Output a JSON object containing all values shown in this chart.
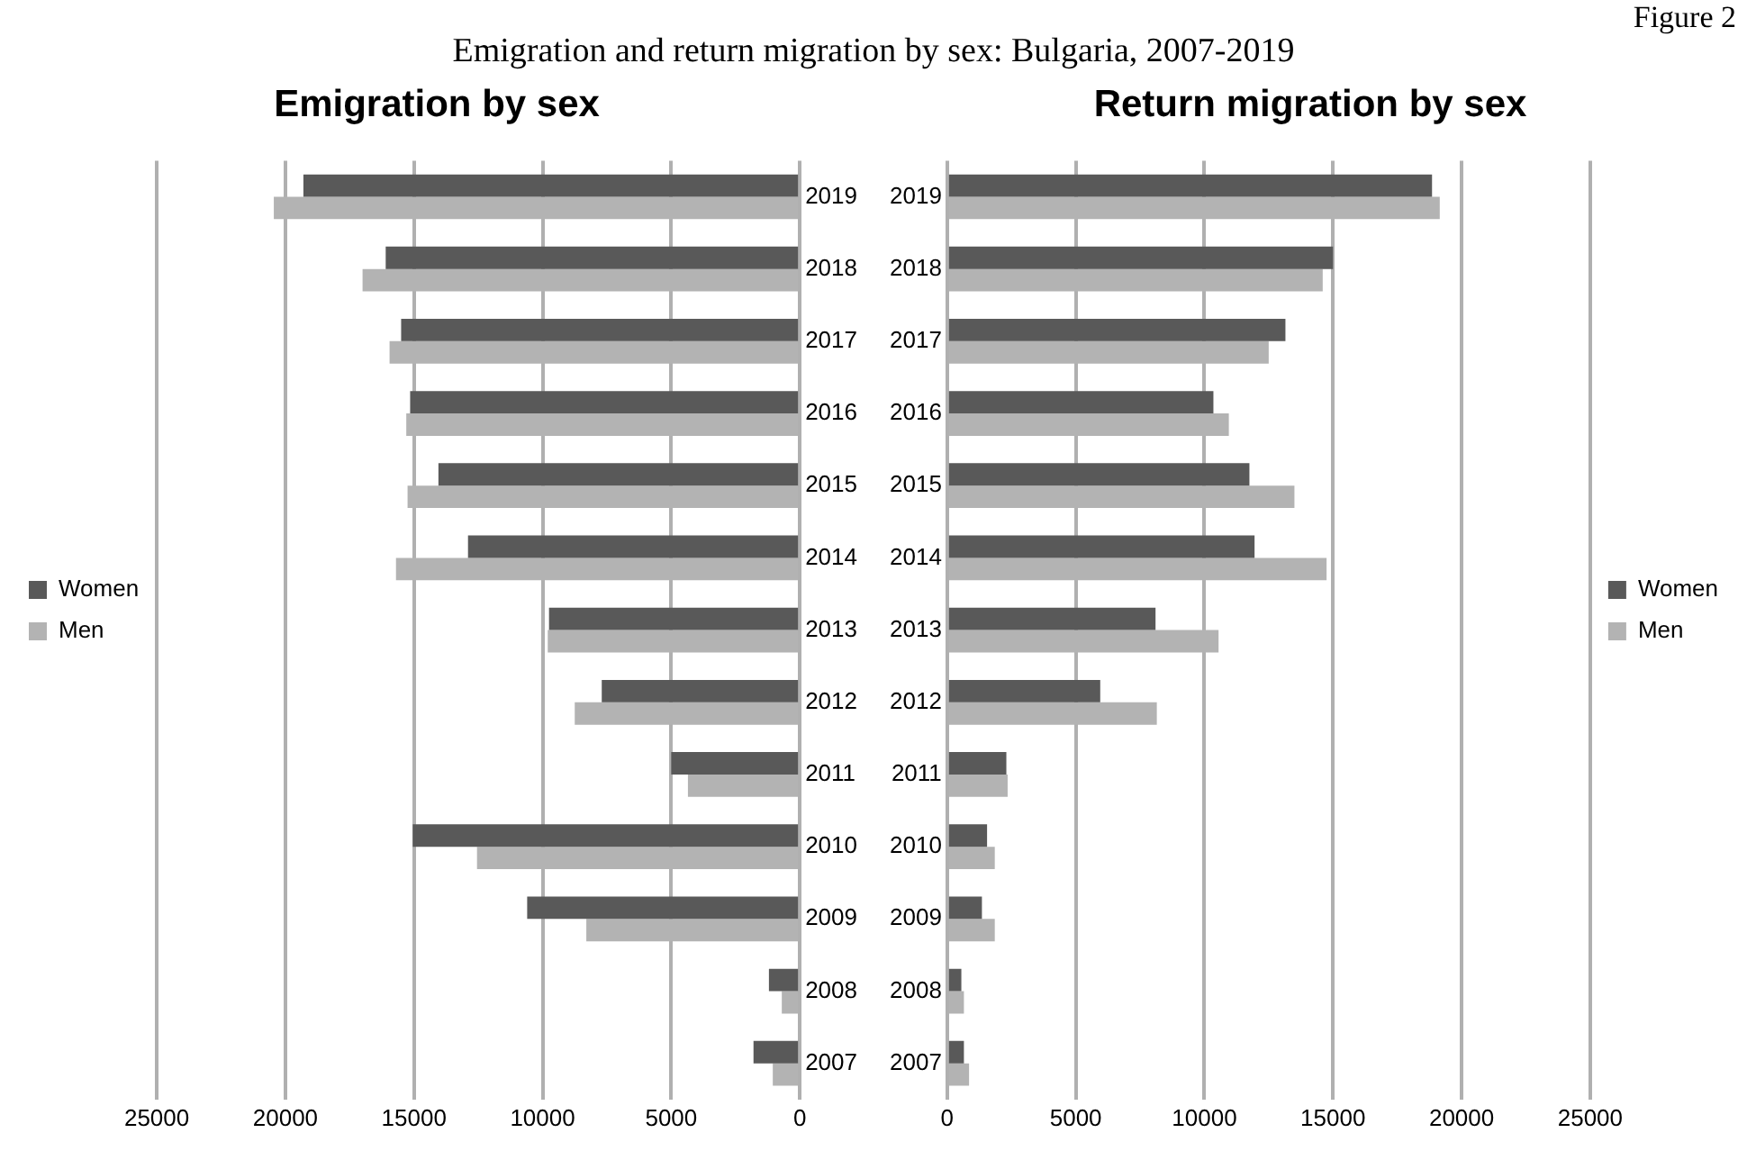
{
  "chart_data": [
    {
      "type": "bar",
      "orientation": "horizontal",
      "title": "Emigration by sex",
      "annotations": [
        "Figure 2",
        "Emigration and return migration by sex: Bulgaria, 2007-2019"
      ],
      "categories": [
        "2019",
        "2018",
        "2017",
        "2016",
        "2015",
        "2014",
        "2013",
        "2012",
        "2011",
        "2010",
        "2009",
        "2008",
        "2007"
      ],
      "series": [
        {
          "name": "Women",
          "color": "#595959",
          "values": [
            19300,
            16100,
            15500,
            15150,
            14050,
            12900,
            9750,
            7700,
            5000,
            15050,
            10600,
            1200,
            1800
          ]
        },
        {
          "name": "Men",
          "color": "#b3b3b3",
          "values": [
            20450,
            17000,
            15950,
            15300,
            15250,
            15700,
            9800,
            8750,
            4350,
            12550,
            8300,
            700,
            1050
          ]
        }
      ],
      "xlim": [
        25000,
        0
      ],
      "xticks": [
        25000,
        20000,
        15000,
        10000,
        5000,
        0
      ],
      "grid": "x",
      "legend": "left"
    },
    {
      "type": "bar",
      "orientation": "horizontal",
      "title": "Return migration by sex",
      "categories": [
        "2019",
        "2018",
        "2017",
        "2016",
        "2015",
        "2014",
        "2013",
        "2012",
        "2011",
        "2010",
        "2009",
        "2008",
        "2007"
      ],
      "series": [
        {
          "name": "Women",
          "color": "#595959",
          "values": [
            18850,
            15000,
            13150,
            10350,
            11750,
            11950,
            8100,
            5950,
            2300,
            1550,
            1350,
            550,
            650
          ]
        },
        {
          "name": "Men",
          "color": "#b3b3b3",
          "values": [
            19150,
            14600,
            12500,
            10950,
            13500,
            14750,
            10550,
            8150,
            2350,
            1850,
            1850,
            650,
            850
          ]
        }
      ],
      "xlim": [
        0,
        25000
      ],
      "xticks": [
        0,
        5000,
        10000,
        15000,
        20000,
        25000
      ],
      "grid": "x",
      "legend": "right"
    }
  ]
}
